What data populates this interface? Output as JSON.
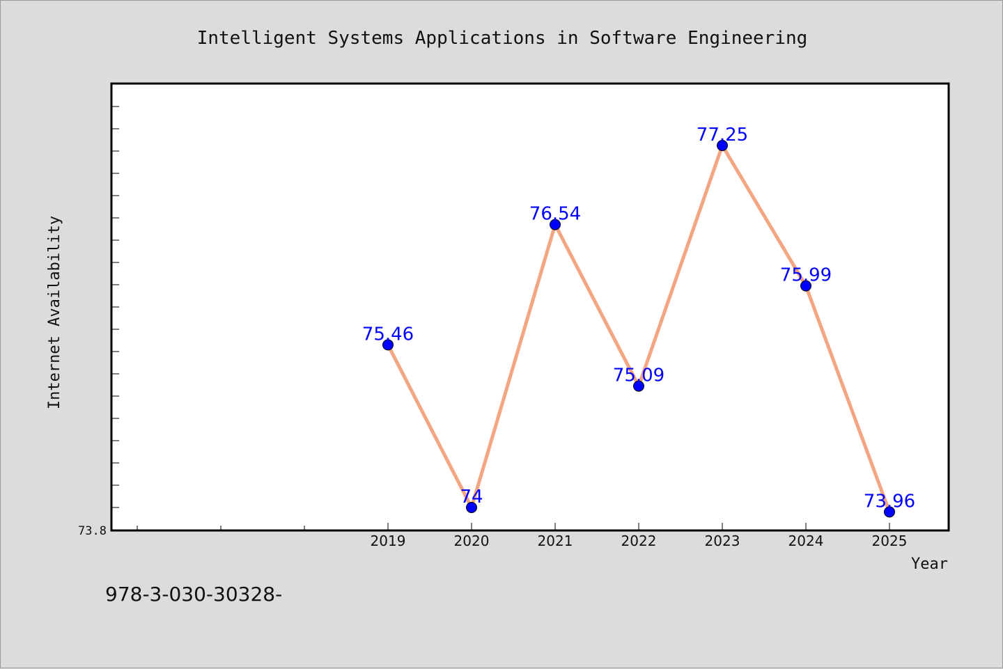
{
  "chart_data": {
    "type": "line",
    "title": "Intelligent Systems Applications in Software Engineering",
    "xlabel": "Year",
    "ylabel": "Internet Availability",
    "x": [
      "2019",
      "2020",
      "2021",
      "2022",
      "2023",
      "2024",
      "2025"
    ],
    "values": [
      75.46,
      74,
      76.54,
      75.09,
      77.25,
      75.99,
      73.96
    ],
    "data_labels": [
      "75.46",
      "74",
      "76.54",
      "75.09",
      "77.25",
      "75.99",
      "73.96"
    ],
    "y_tick_labels": [
      "73.8"
    ],
    "ylim": [
      73.8,
      77.8
    ],
    "x_positions": [
      3,
      4,
      5,
      6,
      7,
      8,
      9
    ],
    "xlim": [
      -0.3,
      9.7
    ],
    "grid": false,
    "legend": "none",
    "colors": {
      "line": "#f4a582",
      "marker": "#0000ff",
      "label": "#0000ff",
      "plot_bg": "#ffffff",
      "page_bg": "#dcdcdc"
    }
  },
  "footer": {
    "text": "978-3-030-30328-"
  }
}
